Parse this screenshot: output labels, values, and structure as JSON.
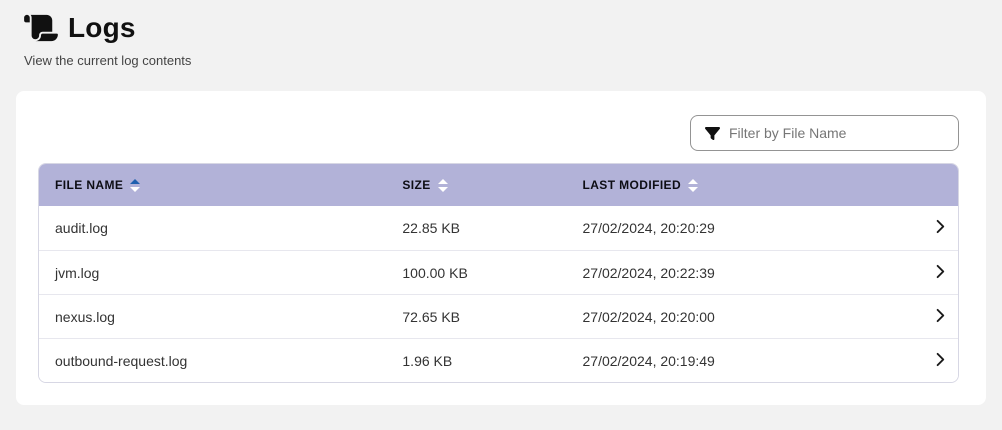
{
  "page": {
    "title": "Logs",
    "subtitle": "View the current log contents",
    "icon": "scroll-icon"
  },
  "filter": {
    "placeholder": "Filter by File Name",
    "value": "",
    "icon": "filter-funnel-icon"
  },
  "table": {
    "columns": [
      {
        "key": "file_name",
        "label": "FILE NAME",
        "sort": "ascending"
      },
      {
        "key": "size",
        "label": "SIZE",
        "sort": "none"
      },
      {
        "key": "last_modified",
        "label": "LAST MODIFIED",
        "sort": "none"
      }
    ],
    "rows": [
      {
        "file_name": "audit.log",
        "size": "22.85 KB",
        "last_modified": "27/02/2024, 20:20:29",
        "action_icon": "chevron-right-icon"
      },
      {
        "file_name": "jvm.log",
        "size": "100.00 KB",
        "last_modified": "27/02/2024, 20:22:39",
        "action_icon": "chevron-right-icon"
      },
      {
        "file_name": "nexus.log",
        "size": "72.65 KB",
        "last_modified": "27/02/2024, 20:20:00",
        "action_icon": "chevron-right-icon"
      },
      {
        "file_name": "outbound-request.log",
        "size": "1.96 KB",
        "last_modified": "27/02/2024, 20:19:49",
        "action_icon": "chevron-right-icon"
      }
    ]
  },
  "colors": {
    "header_bg": "#b2b2d8",
    "sort_active": "#2060ae",
    "sort_inactive": "#ffffff",
    "card_bg": "#ffffff",
    "page_bg": "#f2f2f2"
  }
}
